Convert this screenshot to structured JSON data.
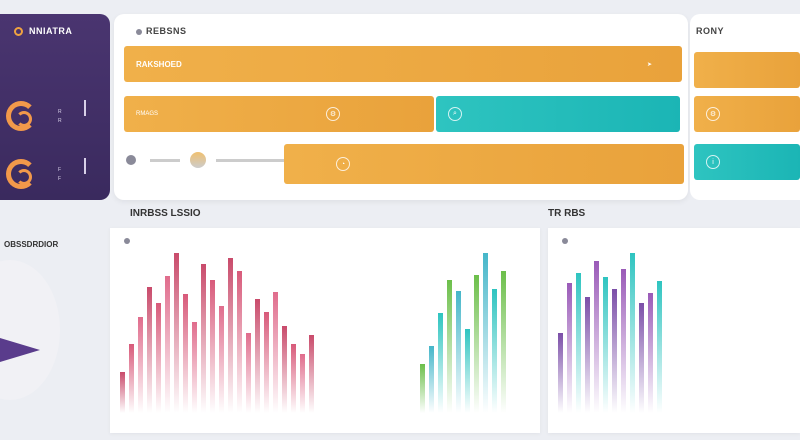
{
  "sidebar": {
    "brand": "NNIATRA",
    "items": [
      {
        "label": "R",
        "sub": "R"
      },
      {
        "label": "F",
        "sub": "F"
      }
    ]
  },
  "panel": {
    "title": "REBSNS",
    "band1_title": "RAKSHOED",
    "band2_label": "RMAGS",
    "right_title": "RONY"
  },
  "section": {
    "left_title": "INRBSS LSSIO",
    "left2_title": "OBSSDRDIOR",
    "right_title": "TR RBS"
  },
  "colors": {
    "purple": "#4a3570",
    "orange": "#f0a340",
    "teal": "#2ec4c0"
  },
  "chart_data": [
    {
      "type": "bar",
      "values": [
        18,
        30,
        42,
        55,
        48,
        60,
        70,
        52,
        40,
        65,
        58,
        47,
        68,
        62,
        35,
        50,
        44,
        53,
        38,
        30,
        26,
        34
      ],
      "title": "",
      "xlabel": "",
      "ylabel": ""
    },
    {
      "type": "bar",
      "values": [
        22,
        30,
        45,
        60,
        55,
        38,
        62,
        72,
        56,
        64
      ],
      "title": "",
      "xlabel": "",
      "ylabel": ""
    },
    {
      "type": "bar",
      "values": [
        40,
        65,
        70,
        58,
        76,
        68,
        62,
        72,
        80,
        55,
        60,
        66
      ],
      "title": "",
      "xlabel": "",
      "ylabel": ""
    }
  ]
}
